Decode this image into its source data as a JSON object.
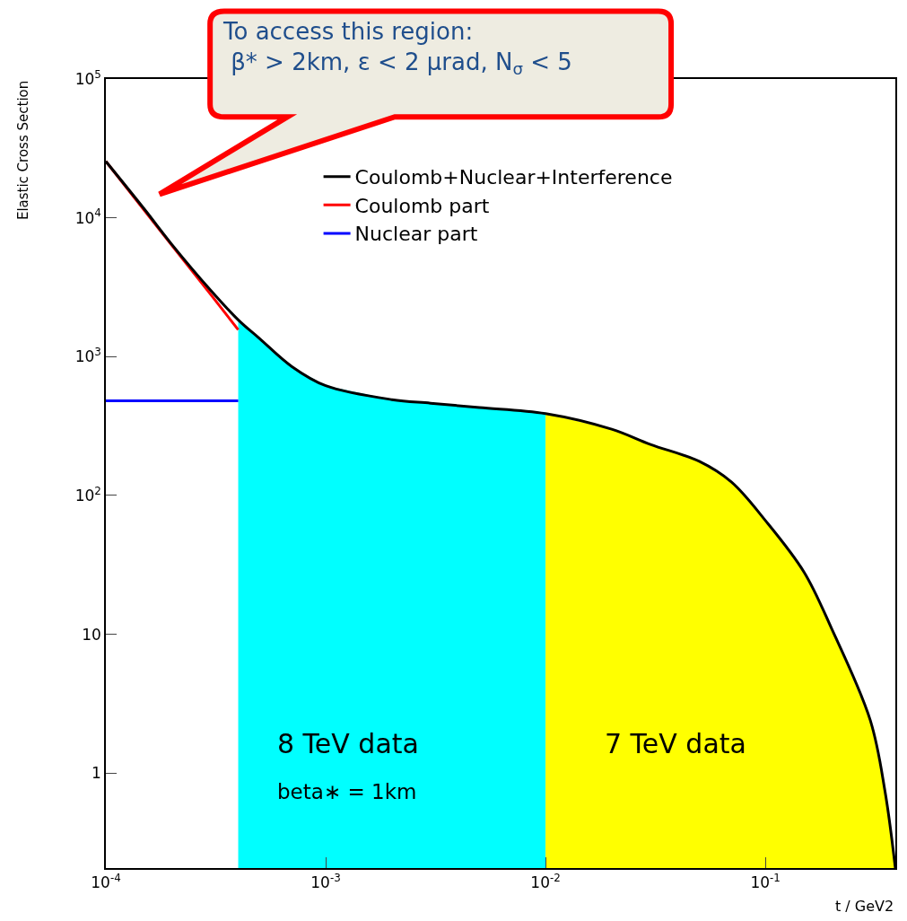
{
  "chart_data": {
    "type": "line",
    "xlabel": "t / GeV2",
    "ylabel": "Elastic Cross Section",
    "log": "xy",
    "legend": "top",
    "marker": "none",
    "line_style": "solid",
    "xlim": [
      0.0001,
      0.39
    ],
    "ylim": [
      0.207,
      100000
    ],
    "xticks": [
      {
        "value": 0.0001,
        "label": "10$^{-4}$"
      },
      {
        "value": 0.001,
        "label": "10$^{-3}$"
      },
      {
        "value": 0.01,
        "label": "10$^{-2}$"
      },
      {
        "value": 0.1,
        "label": "10$^{-1}$"
      }
    ],
    "yticks": [
      1,
      10,
      {
        "value": 100,
        "label": "10$^{2}$"
      },
      {
        "value": 1000,
        "label": "10$^{3}$"
      },
      {
        "value": 10000,
        "label": "10$^{4}$"
      },
      {
        "value": 100000,
        "label": "10$^{5}$"
      }
    ],
    "series": [
      {
        "type": "area",
        "color": "#00ffff",
        "x": [
          0.0004,
          0.0005,
          0.0007,
          0.001,
          0.002,
          0.003,
          0.005,
          0.01
        ],
        "values": [
          1840,
          1350,
          850,
          617,
          490,
          462,
          430,
          389
        ]
      },
      {
        "type": "area",
        "color": "#ffff00",
        "x": [
          0.01,
          0.02,
          0.03,
          0.05,
          0.07,
          0.1,
          0.15,
          0.2,
          0.3,
          0.35,
          0.39
        ],
        "values": [
          389,
          300,
          233,
          176,
          125,
          66,
          28,
          11,
          2.4,
          0.74,
          0.207
        ]
      },
      {
        "name": "Nuclear part",
        "color": "#0000ff",
        "x": [
          0.0001,
          0.0002,
          0.0003,
          0.0004
        ],
        "values": [
          480,
          480,
          480,
          480
        ]
      },
      {
        "name": "Coulomb part",
        "color": "#ff0000",
        "x": [
          0.0001,
          0.0002,
          0.0003,
          0.0004
        ],
        "values": [
          25500,
          6300,
          2800,
          1560
        ]
      },
      {
        "name": "Coulomb+Nuclear+Interference",
        "color": "#000000",
        "x": [
          0.0001,
          0.00015,
          0.0002,
          0.0003,
          0.0004,
          0.0005,
          0.0007,
          0.001,
          0.002,
          0.003,
          0.005,
          0.01,
          0.02,
          0.03,
          0.05,
          0.07,
          0.1,
          0.15,
          0.2,
          0.3,
          0.35,
          0.39
        ],
        "values": [
          25500,
          11500,
          6400,
          3000,
          1840,
          1350,
          850,
          617,
          490,
          462,
          430,
          389,
          300,
          233,
          176,
          125,
          66,
          28,
          11,
          2.4,
          0.74,
          0.207
        ]
      }
    ],
    "annotations": [
      "To access this region:\n β* > 2km, ε < 2 μrad, N$_{σ}$ < 5",
      "8 TeV data",
      "beta∗ = 1km",
      "7 TeV data"
    ]
  }
}
